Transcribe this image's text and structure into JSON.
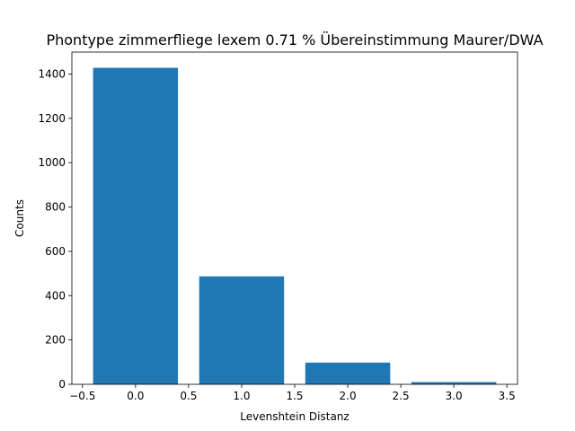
{
  "chart_data": {
    "type": "bar",
    "title": "Phontype zimmerfliege lexem 0.71 % Übereinstimmung Maurer/DWA",
    "xlabel": "Levenshtein Distanz",
    "ylabel": "Counts",
    "x": [
      0,
      1,
      2,
      3
    ],
    "values": [
      1428,
      487,
      98,
      10
    ],
    "bar_width": 0.8,
    "xlim": [
      -0.6,
      3.6
    ],
    "ylim": [
      0,
      1499
    ],
    "xticks": [
      -0.5,
      0.0,
      0.5,
      1.0,
      1.5,
      2.0,
      2.5,
      3.0,
      3.5
    ],
    "xtick_labels": [
      "−0.5",
      "0.0",
      "0.5",
      "1.0",
      "1.5",
      "2.0",
      "2.5",
      "3.0",
      "3.5"
    ],
    "yticks": [
      0,
      200,
      400,
      600,
      800,
      1000,
      1200,
      1400
    ],
    "ytick_labels": [
      "0",
      "200",
      "400",
      "600",
      "800",
      "1000",
      "1200",
      "1400"
    ],
    "bar_color": "#1f77b4",
    "grid": false,
    "legend": "none"
  }
}
